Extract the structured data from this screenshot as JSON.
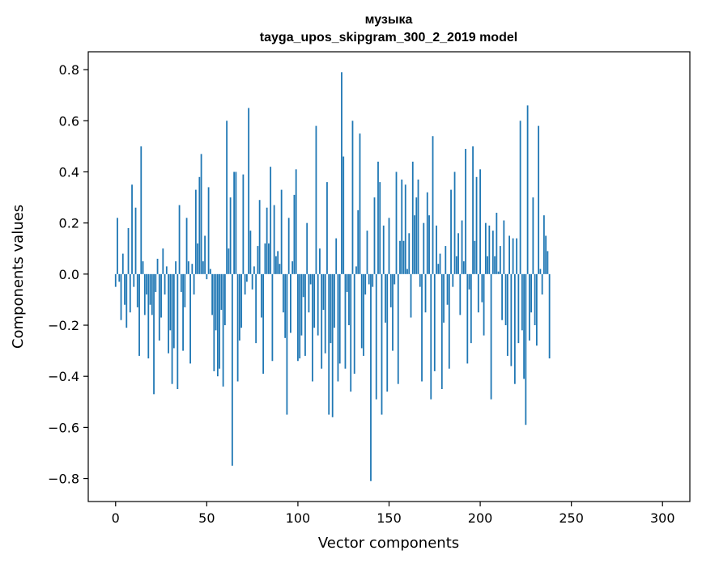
{
  "chart_data": {
    "type": "bar",
    "title": "музыка",
    "subtitle": "tayga_upos_skipgram_300_2_2019 model",
    "xlabel": "Vector components",
    "ylabel": "Components values",
    "xlim": [
      -15,
      315
    ],
    "ylim": [
      -0.89,
      0.87
    ],
    "xticks": [
      0,
      50,
      100,
      150,
      200,
      250,
      300
    ],
    "xtick_labels": [
      "0",
      "50",
      "100",
      "150",
      "200",
      "250",
      "300"
    ],
    "yticks": [
      0.8,
      0.6,
      0.4,
      0.2,
      0.0,
      -0.2,
      -0.4,
      -0.6,
      -0.8
    ],
    "ytick_labels": [
      "0.8",
      "0.6",
      "0.4",
      "0.2",
      "0.0",
      "−0.2",
      "−0.4",
      "−0.6",
      "−0.8"
    ],
    "bar_color": "#1f77b4",
    "values": [
      -0.05,
      0.22,
      -0.03,
      -0.18,
      0.08,
      -0.12,
      -0.21,
      0.18,
      -0.15,
      0.35,
      -0.05,
      0.26,
      -0.13,
      -0.32,
      0.5,
      0.05,
      -0.16,
      -0.08,
      -0.33,
      -0.12,
      -0.16,
      -0.47,
      -0.07,
      0.06,
      -0.26,
      -0.17,
      0.1,
      -0.08,
      0.03,
      -0.31,
      -0.22,
      -0.43,
      -0.29,
      0.05,
      -0.45,
      0.27,
      -0.07,
      -0.3,
      -0.13,
      0.22,
      0.05,
      -0.35,
      0.04,
      -0.08,
      0.33,
      0.12,
      0.38,
      0.47,
      0.05,
      0.15,
      -0.02,
      0.34,
      0.02,
      -0.16,
      -0.38,
      -0.22,
      -0.4,
      -0.37,
      -0.14,
      -0.44,
      -0.2,
      0.6,
      0.1,
      0.3,
      -0.75,
      0.4,
      0.4,
      -0.42,
      -0.26,
      -0.21,
      0.39,
      -0.08,
      -0.03,
      0.65,
      0.17,
      -0.06,
      0.03,
      -0.27,
      0.11,
      0.29,
      -0.17,
      -0.39,
      0.12,
      0.26,
      0.12,
      0.42,
      -0.34,
      0.27,
      0.07,
      0.09,
      0.04,
      0.33,
      -0.15,
      -0.25,
      -0.55,
      0.22,
      -0.23,
      0.05,
      0.31,
      0.41,
      -0.34,
      -0.33,
      -0.24,
      -0.09,
      -0.32,
      0.2,
      -0.15,
      -0.04,
      -0.42,
      -0.21,
      0.58,
      -0.24,
      0.1,
      -0.37,
      -0.14,
      -0.31,
      0.36,
      -0.55,
      -0.27,
      -0.56,
      -0.21,
      0.14,
      -0.42,
      -0.35,
      0.79,
      0.46,
      -0.37,
      -0.07,
      -0.2,
      -0.46,
      0.6,
      -0.39,
      0.03,
      0.25,
      0.55,
      -0.29,
      -0.32,
      -0.08,
      0.17,
      -0.04,
      -0.81,
      -0.05,
      0.3,
      -0.49,
      0.44,
      0.36,
      -0.55,
      0.19,
      -0.19,
      -0.46,
      0.22,
      -0.13,
      -0.3,
      -0.04,
      0.4,
      -0.43,
      0.13,
      0.37,
      0.13,
      0.35,
      0.02,
      0.16,
      -0.17,
      0.44,
      0.23,
      0.3,
      0.37,
      -0.05,
      -0.42,
      0.2,
      -0.15,
      0.32,
      0.23,
      -0.49,
      0.54,
      -0.38,
      0.19,
      0.04,
      0.08,
      -0.45,
      -0.19,
      0.11,
      -0.12,
      -0.37,
      0.33,
      -0.05,
      0.4,
      0.07,
      0.16,
      -0.16,
      0.21,
      0.05,
      0.49,
      -0.35,
      -0.06,
      -0.27,
      0.5,
      0.13,
      0.38,
      -0.15,
      0.41,
      -0.11,
      -0.24,
      0.2,
      0.07,
      0.19,
      -0.49,
      0.17,
      0.07,
      0.24,
      0.01,
      0.11,
      -0.18,
      0.21,
      -0.2,
      -0.32,
      0.15,
      -0.36,
      0.14,
      -0.43,
      0.14,
      -0.27,
      0.6,
      -0.22,
      -0.41,
      -0.59,
      0.66,
      -0.26,
      -0.15,
      0.3,
      -0.2,
      -0.28,
      0.58,
      0.02,
      -0.08,
      0.23,
      0.15,
      0.09,
      -0.33
    ]
  }
}
